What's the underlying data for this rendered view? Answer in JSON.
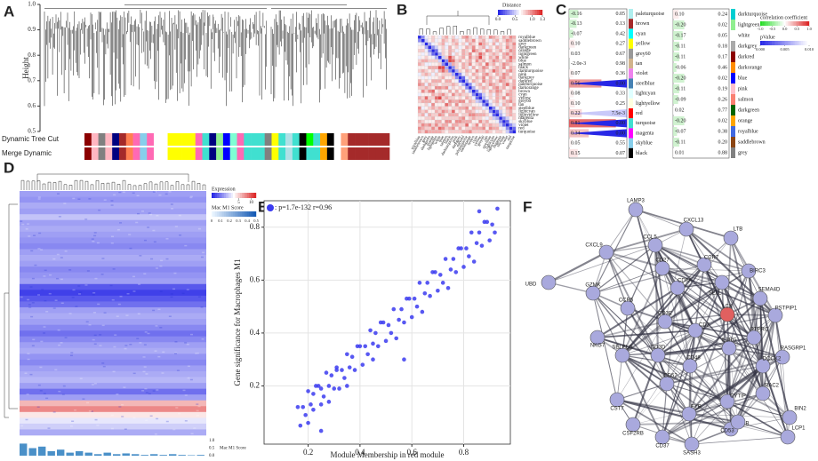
{
  "chart_data": [
    {
      "type": "dendrogram",
      "panel": "A",
      "ylabel": "Height",
      "ylim": [
        0.5,
        1.0
      ],
      "yticks": [
        0.5,
        0.6,
        0.7,
        0.8,
        0.9,
        {
          "value": 1.0,
          "label": "1.0"
        }
      ],
      "strips": [
        {
          "name": "Dynamic Tree Cut",
          "colors": [
            "#8b0000",
            "#ffb6c1",
            "#808080",
            "#ffb6c1",
            "#000080",
            "#a52a2a",
            "#ff7f50",
            "#ff69b4",
            "#87ceeb",
            "#ff69b4",
            "#ffffff",
            "#ffffff",
            "#ffff00",
            "#ffff00",
            "#ffff00",
            "#ffff00",
            "#ff69b4",
            "#40e0d0",
            "#000080",
            "#90ee90",
            "#0000ff",
            "#7fffd4",
            "#ff69b4",
            "#40e0d0",
            "#40e0d0",
            "#40e0d0",
            "#808080",
            "#ffff00",
            "#40e0d0",
            "#b0e0e6",
            "#40e0d0",
            "#000000",
            "#00ff00",
            "#40e0d0",
            "#ffa500",
            "#000000",
            "#ffffff",
            "#ffa07a",
            "#a52a2a",
            "#a52a2a",
            "#a52a2a",
            "#a52a2a",
            "#a52a2a",
            "#a52a2a"
          ]
        },
        {
          "name": "Merge Dynamic",
          "colors": [
            "#8b0000",
            "#ffb6c1",
            "#808080",
            "#ffb6c1",
            "#000080",
            "#a52a2a",
            "#ff7f50",
            "#ff69b4",
            "#87ceeb",
            "#ff69b4",
            "#ffffff",
            "#ffffff",
            "#ffff00",
            "#ffff00",
            "#ffff00",
            "#ffff00",
            "#ff69b4",
            "#40e0d0",
            "#000080",
            "#90ee90",
            "#0000ff",
            "#7fffd4",
            "#ff69b4",
            "#40e0d0",
            "#40e0d0",
            "#40e0d0",
            "#808080",
            "#ffff00",
            "#40e0d0",
            "#b0e0e6",
            "#40e0d0",
            "#000000",
            "#40e0d0",
            "#40e0d0",
            "#ffa500",
            "#000000",
            "#ffffff",
            "#ffa07a",
            "#a52a2a",
            "#a52a2a",
            "#a52a2a",
            "#a52a2a",
            "#a52a2a",
            "#a52a2a"
          ]
        }
      ]
    },
    {
      "type": "heatmap",
      "panel": "B",
      "legend_title": "Distance",
      "clim": [
        0,
        1.3
      ],
      "cticks": [
        {
          "value": 0,
          "label": "0.0"
        },
        0.5,
        {
          "value": 1.0,
          "label": "1.0"
        },
        1.3
      ],
      "modules": [
        "royalblue",
        "saddlebrown",
        "grey",
        "darkgreen",
        "orange",
        "lightgreen",
        "white",
        "blue",
        "salmon",
        "black",
        "darkturquoise",
        "pink",
        "darkgrey",
        "darkred",
        "paleturquoise",
        "darkorange",
        "brown",
        "cyan",
        "yellow",
        "grey60",
        "tan",
        "steelblue",
        "lightcyan",
        "lightyellow",
        "magenta",
        "skyblue",
        "violet",
        "red",
        "turquoise"
      ],
      "upper": [
        [
          0.3,
          0.6,
          0.7,
          0.8,
          0.7,
          0.6,
          0.8,
          0.9,
          0.7,
          0.8,
          0.6,
          0.7,
          0.9,
          1.0,
          0.8,
          0.7,
          0.6,
          0.9,
          0.8,
          0.7,
          1.0,
          0.9,
          0.8,
          0.7,
          0.9,
          0.8,
          1.0,
          0.9
        ],
        [
          0.5,
          0.7,
          0.8,
          0.6,
          0.7,
          0.9,
          0.8,
          0.7,
          0.9,
          0.8,
          0.6,
          0.7,
          0.9,
          0.8,
          1.0,
          0.7,
          0.8,
          0.9,
          0.7,
          0.6,
          0.8,
          0.9,
          0.7,
          0.8,
          1.0,
          0.9,
          0.8
        ],
        [
          0.4,
          0.6,
          0.7,
          0.8,
          0.9,
          0.6,
          0.7,
          0.8,
          0.9,
          0.7,
          0.8,
          0.6,
          0.9,
          0.8,
          0.7,
          1.1,
          0.9,
          0.8,
          0.7,
          0.9,
          0.6,
          0.8,
          0.7,
          0.9,
          0.8,
          1.0
        ],
        [
          0.3,
          0.5,
          0.7,
          0.8,
          0.6,
          0.9,
          0.7,
          0.8,
          0.6,
          0.7,
          0.9,
          0.8,
          1.0,
          0.7,
          0.8,
          0.9,
          0.6,
          0.8,
          0.7,
          0.9,
          0.8,
          0.7,
          1.0,
          0.8,
          0.9
        ],
        [
          0.2,
          0.6,
          0.8,
          0.7,
          0.9,
          0.8,
          0.6,
          0.7,
          0.9,
          0.8,
          0.7,
          1.1,
          0.9,
          0.8,
          0.7,
          1.0,
          0.9,
          0.7,
          0.8,
          0.9,
          0.7,
          0.8,
          1.0,
          0.9
        ],
        [
          0.4,
          0.8,
          0.7,
          0.9,
          0.6,
          0.8,
          0.7,
          0.9,
          0.8,
          1.0,
          0.7,
          0.8,
          1.1,
          0.9,
          0.7,
          0.8,
          0.9,
          0.8,
          0.7,
          0.9,
          1.0,
          0.8,
          0.9
        ],
        [
          0.5,
          0.8,
          1.2,
          0.9,
          0.7,
          0.8,
          0.9,
          0.7,
          1.0,
          0.8,
          0.9,
          1.2,
          0.8,
          0.7,
          0.9,
          0.8,
          1.0,
          0.7,
          0.9,
          0.8,
          1.1,
          0.9
        ],
        [
          0.3,
          1.2,
          1.1,
          0.8,
          0.9,
          0.7,
          0.8,
          0.9,
          0.7,
          1.0,
          0.8,
          0.9,
          0.7,
          0.8,
          1.0,
          0.9,
          0.8,
          0.7,
          0.9,
          1.0,
          0.8
        ],
        [
          0.4,
          0.9,
          0.8,
          0.7,
          0.9,
          0.8,
          1.0,
          0.7,
          0.8,
          0.9,
          0.7,
          1.1,
          0.8,
          0.9,
          0.7,
          0.8,
          1.0,
          0.9,
          0.8,
          0.7
        ],
        [
          0.3,
          0.8,
          0.7,
          0.9,
          0.8,
          0.6,
          0.9,
          0.7,
          0.8,
          1.0,
          0.9,
          0.7,
          0.8,
          0.9,
          0.8,
          1.0,
          0.7,
          0.9,
          0.8
        ],
        [
          0.4,
          0.8,
          0.7,
          0.9,
          0.8,
          0.7,
          1.0,
          0.8,
          0.9,
          0.7,
          0.8,
          1.1,
          0.9,
          0.8,
          0.7,
          0.9,
          1.0,
          0.8
        ],
        [
          0.3,
          0.6,
          0.8,
          0.7,
          0.9,
          0.8,
          0.7,
          0.9,
          1.0,
          0.8,
          0.7,
          0.9,
          0.8,
          1.0,
          0.9,
          0.7,
          0.8
        ],
        [
          0.2,
          0.6,
          0.8,
          0.7,
          0.9,
          0.8,
          1.0,
          0.7,
          0.9,
          0.8,
          0.7,
          0.9,
          1.0,
          0.8,
          0.9,
          0.8
        ],
        [
          0.4,
          0.7,
          0.9,
          0.8,
          0.7,
          1.0,
          0.8,
          0.9,
          0.7,
          0.8,
          1.0,
          0.9,
          0.8,
          0.7,
          0.9
        ],
        [
          0.3,
          0.6,
          0.8,
          0.9,
          0.7,
          0.8,
          1.0,
          0.9,
          0.8,
          0.7,
          0.9,
          1.1,
          0.8,
          0.9
        ],
        [
          0.4,
          0.7,
          0.8,
          0.9,
          0.8,
          0.7,
          0.9,
          1.0,
          0.8,
          0.9,
          0.7,
          0.8,
          1.0
        ],
        [
          0.3,
          0.6,
          0.8,
          0.7,
          0.9,
          0.8,
          1.0,
          0.9,
          0.7,
          0.8,
          0.9,
          0.8
        ],
        [
          0.2,
          0.5,
          0.7,
          0.8,
          0.6,
          0.9,
          0.8,
          0.7,
          1.0,
          0.9,
          0.8
        ],
        [
          0.4,
          0.6,
          0.8,
          0.7,
          0.9,
          0.8,
          1.0,
          0.7,
          0.9,
          0.8
        ],
        [
          0.3,
          0.6,
          0.8,
          0.9,
          0.7,
          0.8,
          0.9,
          1.0,
          0.8
        ],
        [
          0.5,
          0.7,
          0.8,
          0.6,
          0.9,
          0.8,
          0.7,
          0.9
        ],
        [
          0.3,
          0.6,
          0.8,
          0.7,
          0.9,
          1.0,
          0.8
        ],
        [
          0.2,
          0.5,
          0.7,
          0.8,
          0.9,
          0.7
        ],
        [
          0.4,
          0.6,
          0.8,
          0.9,
          0.8
        ],
        [
          0.3,
          0.5,
          0.7,
          0.8
        ],
        [
          0.2,
          0.6,
          0.7
        ],
        [
          0.3,
          0.5
        ],
        [
          0.2
        ]
      ]
    },
    {
      "type": "correlation-table",
      "panel": "C",
      "legend_title": "correlation coefficient",
      "p_title": "pValue",
      "cticks": [
        {
          "value": -1,
          "label": "-1.0"
        },
        -0.5,
        {
          "value": 0,
          "label": "0.0"
        },
        0.5,
        {
          "value": 1,
          "label": "1.0"
        }
      ],
      "pticks": [
        {
          "value": 0,
          "label": "0.000"
        },
        {
          "value": 0.005,
          "label": "0.005"
        },
        {
          "value": 0.01,
          "label": "0.010"
        }
      ],
      "tables": [
        {
          "modules": [
            "paleturquoise",
            "brown",
            "cyan",
            "yellow",
            "grey60",
            "tan",
            "violet",
            "steelblue",
            "lightcyan",
            "lightyellow",
            "red",
            "turquoise",
            "magenta",
            "skyblue",
            "black"
          ],
          "colors": [
            "#afeeee",
            "#a52a2a",
            "#00ffff",
            "#ffff00",
            "#999999",
            "#d2b48c",
            "#ee82ee",
            "#4682b4",
            "#e0ffff",
            "#ffffe0",
            "#ff0000",
            "#40e0d0",
            "#ff00ff",
            "#87ceeb",
            "#000000"
          ],
          "r": [
            -0.16,
            -0.13,
            -0.07,
            0.1,
            0.03,
            -0.002,
            0.07,
            0.56,
            0.08,
            0.1,
            0.22,
            0.81,
            0.34,
            0.05,
            0.15
          ],
          "r_labels": [
            "-0.16",
            "-0.13",
            "-0.07",
            "0.10",
            "0.03",
            "-2.0e-3",
            "0.07",
            "0.56",
            "0.08",
            "0.10",
            "0.22",
            "0.81",
            "0.34",
            "0.05",
            "0.15"
          ],
          "p": [
            0.05,
            0.13,
            0.42,
            0.27,
            0.67,
            0.98,
            0.36,
            0,
            0.33,
            0.25,
            0.0075,
            0,
            0,
            0.55,
            0.07
          ],
          "p_labels": [
            "0.05",
            "0.13",
            "0.42",
            "0.27",
            "0.67",
            "0.98",
            "0.36",
            "0.00",
            "0.33",
            "0.25",
            "7.5e-3",
            "0.00",
            "0.00",
            "0.55",
            "0.07"
          ]
        },
        {
          "modules": [
            "darkturquoise",
            "lightgreen",
            "white",
            "darkgrey",
            "darkred",
            "darkorange",
            "blue",
            "pink",
            "salmon",
            "darkgreen",
            "orange",
            "royalblue",
            "saddlebrown",
            "grey"
          ],
          "colors": [
            "#00ced1",
            "#90ee90",
            "#ffffff",
            "#a9a9a9",
            "#8b0000",
            "#ff8c00",
            "#0000ff",
            "#ffc0cb",
            "#fa8072",
            "#006400",
            "#ffa500",
            "#4169e1",
            "#8b4513",
            "#808080"
          ],
          "r": [
            0.1,
            -0.2,
            -0.17,
            -0.11,
            -0.11,
            -0.06,
            -0.2,
            -0.11,
            -0.09,
            0.02,
            -0.2,
            -0.07,
            -0.11,
            0.01
          ],
          "r_labels": [
            "0.10",
            "-0.20",
            "-0.17",
            "-0.11",
            "-0.11",
            "-0.06",
            "-0.20",
            "-0.11",
            "-0.09",
            "0.02",
            "-0.20",
            "-0.07",
            "-0.11",
            "0.01"
          ],
          "p": [
            0.24,
            0.02,
            0.05,
            0.18,
            0.17,
            0.46,
            0.02,
            0.19,
            0.26,
            0.77,
            0.02,
            0.38,
            0.2,
            0.88
          ],
          "p_labels": [
            "0.24",
            "0.02",
            "0.05",
            "0.18",
            "0.17",
            "0.46",
            "0.02",
            "0.19",
            "0.26",
            "0.77",
            "0.02",
            "0.38",
            "0.20",
            "0.88"
          ]
        }
      ]
    },
    {
      "type": "expression-heatmap",
      "panel": "D",
      "legend_title": "Expression",
      "clim": [
        -6,
        12
      ],
      "cticks": [
        5,
        10
      ],
      "score_title": "Mac M1 Score",
      "score_ticks": [
        0,
        0.1,
        0.2,
        0.3,
        0.4,
        0.5
      ],
      "row_values": [
        -1,
        -1.5,
        -0.5,
        -1,
        0.5,
        -1,
        -0.5,
        -1,
        -1.5,
        -2,
        -1,
        -0.5,
        -1,
        -2,
        -1.5,
        -1,
        -4,
        -5,
        -4,
        -3,
        -1,
        -0.5,
        -1,
        -2,
        -3,
        -2,
        -1,
        -0.5,
        -1.5,
        -2,
        -1,
        -0.5,
        0,
        -1,
        -3,
        -1,
        6,
        8,
        4,
        2,
        1,
        -0.5
      ],
      "score_ylim": [
        0,
        1
      ],
      "score_yticks": [
        {
          "value": 1,
          "label": "1.0"
        },
        0.5,
        {
          "value": 0,
          "label": "0.0"
        }
      ],
      "score_values": [
        0.8,
        0.5,
        0.6,
        0.3,
        0.4,
        0.2,
        0.3,
        0.2,
        0.1,
        0.2,
        0.1,
        0.15,
        0.1,
        0.05,
        0.1,
        0.05,
        0.1,
        0.05,
        0.03,
        0.05
      ]
    },
    {
      "type": "scatter",
      "panel": "E",
      "legend": ": p=1.7e-132 r=0.96",
      "color": "#3b3bf0",
      "xlabel": "Module Membership in red module",
      "ylabel": "Gene significance for Macrophages M1",
      "xlim": [
        0.03,
        0.98
      ],
      "ylim": [
        -0.02,
        0.9
      ],
      "xticks": [
        0.2,
        0.4,
        0.6,
        0.8
      ],
      "yticks": [
        0.2,
        0.4,
        0.6,
        0.8
      ],
      "grid": true,
      "x": [
        0.16,
        0.17,
        0.18,
        0.19,
        0.2,
        0.2,
        0.21,
        0.22,
        0.22,
        0.23,
        0.24,
        0.25,
        0.25,
        0.26,
        0.27,
        0.28,
        0.28,
        0.29,
        0.3,
        0.31,
        0.31,
        0.32,
        0.33,
        0.34,
        0.35,
        0.35,
        0.36,
        0.37,
        0.38,
        0.39,
        0.4,
        0.41,
        0.42,
        0.43,
        0.44,
        0.45,
        0.45,
        0.46,
        0.47,
        0.48,
        0.49,
        0.5,
        0.51,
        0.52,
        0.53,
        0.54,
        0.55,
        0.56,
        0.57,
        0.58,
        0.59,
        0.6,
        0.61,
        0.62,
        0.63,
        0.64,
        0.65,
        0.66,
        0.67,
        0.68,
        0.69,
        0.7,
        0.71,
        0.72,
        0.73,
        0.74,
        0.75,
        0.76,
        0.77,
        0.78,
        0.79,
        0.8,
        0.81,
        0.82,
        0.83,
        0.84,
        0.85,
        0.86,
        0.87,
        0.88,
        0.89,
        0.9,
        0.91,
        0.92,
        0.93,
        0.57,
        0.25,
        0.86
      ],
      "values": [
        0.12,
        0.05,
        0.12,
        0.09,
        0.18,
        0.06,
        0.13,
        0.17,
        0.11,
        0.2,
        0.2,
        0.13,
        0.19,
        0.16,
        0.25,
        0.14,
        0.2,
        0.24,
        0.19,
        0.27,
        0.26,
        0.19,
        0.26,
        0.23,
        0.32,
        0.2,
        0.27,
        0.31,
        0.26,
        0.35,
        0.35,
        0.28,
        0.35,
        0.32,
        0.41,
        0.3,
        0.36,
        0.4,
        0.35,
        0.44,
        0.44,
        0.37,
        0.43,
        0.4,
        0.49,
        0.38,
        0.45,
        0.49,
        0.44,
        0.53,
        0.53,
        0.46,
        0.53,
        0.5,
        0.59,
        0.48,
        0.55,
        0.59,
        0.54,
        0.63,
        0.63,
        0.56,
        0.62,
        0.59,
        0.68,
        0.57,
        0.64,
        0.68,
        0.63,
        0.72,
        0.72,
        0.65,
        0.72,
        0.69,
        0.78,
        0.67,
        0.74,
        0.78,
        0.73,
        0.82,
        0.82,
        0.75,
        0.81,
        0.78,
        0.87,
        0.3,
        0.03,
        0.86
      ]
    },
    {
      "type": "network",
      "panel": "F",
      "nodes": [
        "LAMP3",
        "CXCL13",
        "LTB",
        "CCL5",
        "CXCL9",
        "BIRC3",
        "UBD",
        "CD27",
        "CCR7",
        "SELL",
        "SEMA4D",
        "GZMK",
        "CD8A",
        "CCR5",
        "CD3E",
        "LCK",
        "PTPRC",
        "PSTPIP1",
        "NKG7",
        "CD2",
        "IL2RG",
        "RASGRP1",
        "SELPLG",
        "CD3D",
        "DOCK2",
        "CD48",
        "CD52",
        "RAC2",
        "BIN2",
        "CST7",
        "CYTIP",
        "LCP1",
        "CSF2RB",
        "FYB",
        "EVI2B",
        "CD53",
        "CD37",
        "SASH3"
      ]
    }
  ]
}
